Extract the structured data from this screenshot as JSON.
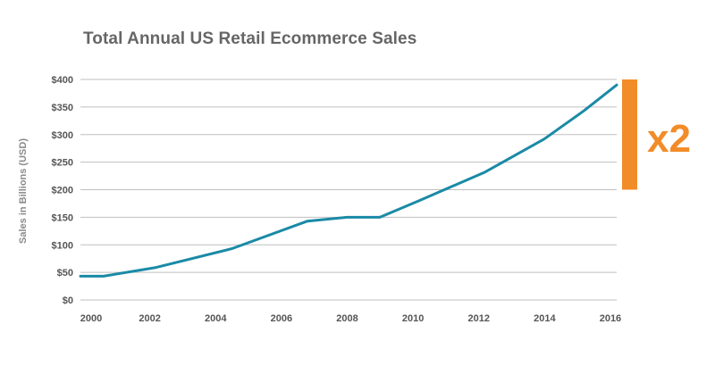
{
  "chart_data": {
    "type": "line",
    "title": "Total Annual US Retail Ecommerce Sales",
    "ylabel": "Sales in Billions (USD)",
    "xlabel": "",
    "x_ticks": [
      "2000",
      "2002",
      "2004",
      "2006",
      "2008",
      "2010",
      "2012",
      "2014",
      "2016"
    ],
    "y_ticks": [
      "$0",
      "$50",
      "$100",
      "$150",
      "$200",
      "$250",
      "$300",
      "$350",
      "$400"
    ],
    "xlim": [
      2000,
      2016.3
    ],
    "ylim": [
      0,
      400
    ],
    "grid": "horizontal",
    "series": [
      {
        "color": "#1a8aa6",
        "points": [
          [
            2000,
            43
          ],
          [
            2000.7,
            43
          ],
          [
            2002.3,
            59
          ],
          [
            2004.6,
            93
          ],
          [
            2006.9,
            143
          ],
          [
            2008.1,
            150
          ],
          [
            2009.1,
            150
          ],
          [
            2010.3,
            180
          ],
          [
            2012.3,
            232
          ],
          [
            2014.1,
            292
          ],
          [
            2015.3,
            343
          ],
          [
            2016.3,
            390
          ]
        ]
      }
    ],
    "annotation": {
      "text": "x2",
      "color": "#f28c28",
      "y_from": 200,
      "y_to": 400
    }
  }
}
